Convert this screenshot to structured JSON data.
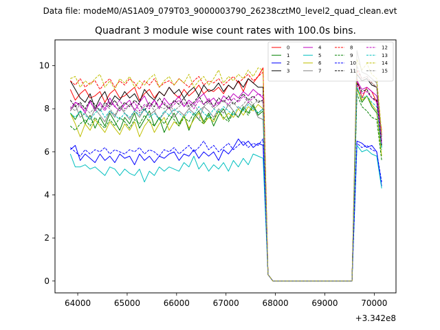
{
  "chart_data": {
    "type": "line",
    "suptitle": "Data file: modeM0/AS1A09_079T03_9000003790_26238cztM0_level2_quad_clean.evt",
    "title": "Quadrant 3 module wise count rates with 100.0s bins.",
    "xlabel": "",
    "ylabel": "",
    "x_offset_label": "+3.342e8",
    "xlim": [
      63540,
      70440
    ],
    "ylim": [
      -0.55,
      11.2
    ],
    "xticks": [
      64000,
      65000,
      66000,
      67000,
      68000,
      69000,
      70000
    ],
    "yticks": [
      0,
      2,
      4,
      6,
      8,
      10
    ],
    "x_start": 63850,
    "bin": 100,
    "legend_position": "top-right",
    "series": [
      {
        "name": "0",
        "color": "#ff0000",
        "dash": "solid",
        "values": [
          8.9,
          8.4,
          8.7,
          8.9,
          8.5,
          8.6,
          8.8,
          8.3,
          8.7,
          8.9,
          8.5,
          8.6,
          8.8,
          9.0,
          8.4,
          8.7,
          8.9,
          8.5,
          8.8,
          8.6,
          9.0,
          8.7,
          8.5,
          8.9,
          8.6,
          8.8,
          9.1,
          8.7,
          8.9,
          8.8,
          9.0,
          8.7,
          9.1,
          8.9,
          9.3,
          8.8,
          9.4,
          9.2,
          9.5,
          9.9,
          0.3,
          0,
          0,
          0,
          0,
          0,
          0,
          0,
          0,
          0,
          0,
          0,
          0,
          0,
          0,
          0,
          0,
          0,
          9.4,
          8.5,
          9.0,
          8.8,
          8.3,
          7.0
        ]
      },
      {
        "name": "1",
        "color": "#008000",
        "dash": "solid",
        "values": [
          7.8,
          7.5,
          7.9,
          7.3,
          7.7,
          7.1,
          7.6,
          7.2,
          7.8,
          7.4,
          7.0,
          7.6,
          7.3,
          7.8,
          7.1,
          7.5,
          7.9,
          7.2,
          7.6,
          6.9,
          7.4,
          7.8,
          7.3,
          7.7,
          7.0,
          7.6,
          7.9,
          7.4,
          7.8,
          7.2,
          7.7,
          8.0,
          7.5,
          7.9,
          7.6,
          8.1,
          7.8,
          8.2,
          7.7,
          7.9,
          0.3,
          0,
          0,
          0,
          0,
          0,
          0,
          0,
          0,
          0,
          0,
          0,
          0,
          0,
          0,
          0,
          0,
          0,
          9.0,
          8.3,
          8.6,
          8.1,
          7.8,
          6.2
        ]
      },
      {
        "name": "2",
        "color": "#0000ff",
        "dash": "solid",
        "values": [
          6.1,
          6.3,
          5.6,
          5.9,
          5.7,
          5.5,
          5.9,
          5.6,
          5.8,
          5.5,
          5.9,
          5.7,
          5.8,
          5.4,
          5.9,
          5.6,
          5.8,
          5.5,
          5.8,
          5.7,
          5.9,
          6.0,
          5.6,
          5.9,
          5.8,
          6.1,
          5.7,
          6.0,
          5.8,
          6.0,
          5.6,
          6.1,
          5.9,
          6.2,
          6.6,
          6.3,
          6.5,
          6.2,
          6.4,
          6.3,
          0.3,
          0,
          0,
          0,
          0,
          0,
          0,
          0,
          0,
          0,
          0,
          0,
          0,
          0,
          0,
          0,
          0,
          0,
          6.5,
          6.4,
          6.2,
          6.3,
          6.0,
          4.4
        ]
      },
      {
        "name": "3",
        "color": "#000000",
        "dash": "solid",
        "values": [
          9.3,
          8.9,
          8.5,
          8.3,
          8.7,
          8.0,
          8.5,
          8.8,
          8.2,
          8.6,
          8.4,
          8.8,
          8.5,
          8.7,
          8.3,
          8.9,
          8.6,
          8.4,
          8.8,
          8.6,
          9.0,
          8.7,
          8.9,
          8.5,
          8.8,
          9.0,
          8.6,
          9.1,
          8.8,
          8.9,
          9.2,
          8.8,
          9.1,
          8.9,
          9.3,
          9.0,
          9.4,
          9.2,
          9.0,
          9.0,
          0.3,
          0,
          0,
          0,
          0,
          0,
          0,
          0,
          0,
          0,
          0,
          0,
          0,
          0,
          0,
          0,
          0,
          0,
          9.6,
          9.3,
          9.4,
          9.1,
          9.0,
          6.7
        ]
      },
      {
        "name": "4",
        "color": "#bf00bf",
        "dash": "solid",
        "values": [
          7.9,
          8.3,
          8.2,
          7.8,
          8.4,
          7.9,
          8.3,
          8.0,
          8.5,
          8.1,
          7.9,
          8.2,
          8.4,
          7.9,
          8.3,
          8.6,
          8.1,
          8.4,
          8.0,
          8.5,
          8.2,
          8.3,
          8.6,
          8.1,
          8.4,
          8.2,
          8.5,
          8.7,
          8.3,
          8.5,
          8.2,
          8.6,
          8.4,
          8.7,
          8.5,
          8.8,
          8.6,
          8.9,
          8.7,
          8.5,
          0.3,
          0,
          0,
          0,
          0,
          0,
          0,
          0,
          0,
          0,
          0,
          0,
          0,
          0,
          0,
          0,
          0,
          0,
          9.3,
          8.9,
          9.0,
          8.8,
          8.6,
          6.5
        ]
      },
      {
        "name": "5",
        "color": "#00bfbf",
        "dash": "solid",
        "values": [
          5.9,
          5.3,
          5.3,
          5.4,
          5.2,
          5.3,
          5.1,
          4.9,
          5.3,
          5.2,
          4.9,
          5.2,
          5.0,
          4.9,
          5.2,
          4.6,
          5.1,
          4.9,
          5.3,
          5.1,
          5.3,
          5.2,
          5.1,
          5.5,
          5.3,
          5.8,
          5.2,
          5.5,
          5.1,
          5.4,
          5.2,
          5.5,
          5.1,
          5.6,
          5.3,
          5.7,
          5.4,
          5.9,
          5.8,
          5.7,
          0.3,
          0,
          0,
          0,
          0,
          0,
          0,
          0,
          0,
          0,
          0,
          0,
          0,
          0,
          0,
          0,
          0,
          0,
          6.3,
          6.0,
          6.1,
          5.9,
          5.8,
          4.3
        ]
      },
      {
        "name": "6",
        "color": "#bfbf00",
        "dash": "solid",
        "values": [
          7.8,
          7.3,
          6.7,
          7.3,
          7.0,
          7.5,
          7.2,
          6.9,
          7.4,
          7.1,
          6.8,
          7.3,
          7.0,
          7.4,
          6.7,
          7.2,
          7.5,
          6.9,
          7.3,
          7.6,
          7.0,
          7.4,
          7.2,
          7.7,
          7.1,
          7.5,
          7.8,
          7.3,
          7.6,
          7.4,
          7.9,
          7.5,
          7.8,
          7.6,
          8.0,
          7.7,
          8.1,
          7.9,
          8.2,
          8.0,
          0.3,
          0,
          0,
          0,
          0,
          0,
          0,
          0,
          0,
          0,
          0,
          0,
          0,
          0,
          0,
          0,
          0,
          0,
          8.9,
          8.4,
          8.6,
          8.2,
          7.9,
          5.8
        ]
      },
      {
        "name": "7",
        "color": "#808080",
        "dash": "solid",
        "values": [
          7.9,
          8.2,
          7.6,
          7.8,
          7.5,
          8.0,
          7.7,
          7.4,
          7.9,
          7.6,
          8.1,
          7.8,
          7.5,
          7.9,
          7.6,
          8.0,
          7.7,
          7.9,
          7.5,
          7.8,
          8.1,
          7.6,
          7.9,
          7.7,
          8.0,
          7.8,
          7.5,
          8.1,
          7.9,
          7.6,
          8.0,
          7.8,
          8.2,
          7.9,
          7.6,
          8.0,
          8.3,
          8.1,
          7.6,
          7.5,
          0.3,
          0,
          0,
          0,
          0,
          0,
          0,
          0,
          0,
          0,
          0,
          0,
          0,
          0,
          0,
          0,
          0,
          0,
          10.7,
          9.7,
          9.6,
          9.4,
          9.2,
          6.7
        ]
      },
      {
        "name": "8",
        "color": "#ff0000",
        "dash": "dashed",
        "values": [
          9.3,
          9.1,
          9.4,
          9.0,
          9.2,
          9.3,
          8.9,
          9.2,
          9.4,
          9.0,
          9.3,
          9.1,
          9.4,
          9.2,
          8.9,
          9.3,
          9.1,
          9.4,
          9.0,
          9.2,
          9.3,
          9.1,
          9.4,
          9.2,
          9.0,
          9.3,
          9.5,
          9.1,
          9.3,
          9.2,
          9.4,
          9.1,
          9.3,
          9.5,
          9.2,
          9.4,
          9.6,
          9.3,
          9.5,
          9.7,
          0.3,
          0,
          0,
          0,
          0,
          0,
          0,
          0,
          0,
          0,
          0,
          0,
          0,
          0,
          0,
          0,
          0,
          0,
          9.8,
          9.4,
          9.5,
          9.2,
          9.0,
          6.8
        ]
      },
      {
        "name": "9",
        "color": "#008000",
        "dash": "dashed",
        "values": [
          7.2,
          7.0,
          7.3,
          7.5,
          7.2,
          7.6,
          7.3,
          7.1,
          7.5,
          7.2,
          7.6,
          7.4,
          7.1,
          7.5,
          7.3,
          7.7,
          7.4,
          7.2,
          7.6,
          7.3,
          7.7,
          7.5,
          7.2,
          7.6,
          7.4,
          7.8,
          7.5,
          7.3,
          7.7,
          7.5,
          7.9,
          7.6,
          7.4,
          7.8,
          7.6,
          8.0,
          7.7,
          8.1,
          7.8,
          8.0,
          0.3,
          0,
          0,
          0,
          0,
          0,
          0,
          0,
          0,
          0,
          0,
          0,
          0,
          0,
          0,
          0,
          0,
          0,
          8.7,
          8.1,
          7.9,
          7.6,
          7.5,
          5.6
        ]
      },
      {
        "name": "10",
        "color": "#0000ff",
        "dash": "dashed",
        "values": [
          6.2,
          6.0,
          5.8,
          6.1,
          5.9,
          6.1,
          6.0,
          6.2,
          5.9,
          6.1,
          6.0,
          5.9,
          6.1,
          6.0,
          6.2,
          5.9,
          6.1,
          6.0,
          5.8,
          6.1,
          6.0,
          6.2,
          5.9,
          6.1,
          6.3,
          6.0,
          6.2,
          6.5,
          6.1,
          6.3,
          6.0,
          6.2,
          6.4,
          6.1,
          6.3,
          6.5,
          6.2,
          6.4,
          6.3,
          6.6,
          0.3,
          0,
          0,
          0,
          0,
          0,
          0,
          0,
          0,
          0,
          0,
          0,
          0,
          0,
          0,
          0,
          0,
          0,
          6.4,
          6.2,
          6.3,
          6.1,
          6.0,
          4.6
        ]
      },
      {
        "name": "11",
        "color": "#000000",
        "dash": "dashed",
        "values": [
          8.4,
          8.1,
          8.3,
          8.0,
          8.4,
          8.2,
          7.9,
          8.3,
          8.1,
          8.4,
          8.0,
          8.3,
          8.1,
          8.4,
          8.2,
          7.9,
          8.3,
          8.1,
          8.5,
          8.2,
          8.0,
          8.4,
          8.2,
          8.5,
          8.1,
          8.3,
          8.6,
          8.2,
          8.4,
          8.1,
          8.5,
          8.3,
          8.6,
          8.2,
          8.4,
          8.7,
          8.4,
          8.6,
          8.3,
          8.4,
          0.3,
          0,
          0,
          0,
          0,
          0,
          0,
          0,
          0,
          0,
          0,
          0,
          0,
          0,
          0,
          0,
          0,
          0,
          9.2,
          8.8,
          8.9,
          8.5,
          8.4,
          6.3
        ]
      },
      {
        "name": "12",
        "color": "#bf00bf",
        "dash": "dashed",
        "values": [
          8.0,
          8.3,
          8.1,
          7.9,
          8.3,
          8.0,
          8.2,
          7.9,
          8.3,
          8.1,
          8.4,
          8.0,
          8.2,
          8.3,
          7.9,
          8.2,
          8.0,
          8.4,
          8.1,
          8.3,
          8.0,
          8.2,
          8.4,
          8.1,
          8.3,
          8.0,
          8.4,
          8.2,
          8.5,
          8.1,
          8.3,
          8.4,
          8.2,
          8.5,
          8.3,
          8.6,
          8.3,
          8.5,
          8.7,
          8.6,
          0.3,
          0,
          0,
          0,
          0,
          0,
          0,
          0,
          0,
          0,
          0,
          0,
          0,
          0,
          0,
          0,
          0,
          0,
          9.1,
          8.7,
          8.8,
          8.5,
          8.3,
          6.4
        ]
      },
      {
        "name": "13",
        "color": "#00bfbf",
        "dash": "dashed",
        "values": [
          7.8,
          7.6,
          7.9,
          7.7,
          7.5,
          7.8,
          8.0,
          7.6,
          7.9,
          7.7,
          7.5,
          7.8,
          7.6,
          7.9,
          7.7,
          8.0,
          7.6,
          7.8,
          7.5,
          7.9,
          7.7,
          8.0,
          7.8,
          7.6,
          7.9,
          7.7,
          8.1,
          7.8,
          7.6,
          8.0,
          7.8,
          8.1,
          7.9,
          7.7,
          8.1,
          7.9,
          8.2,
          8.0,
          7.8,
          8.0,
          0.3,
          0,
          0,
          0,
          0,
          0,
          0,
          0,
          0,
          0,
          0,
          0,
          0,
          0,
          0,
          0,
          0,
          0,
          9.0,
          8.5,
          8.6,
          8.3,
          8.1,
          6.1
        ]
      },
      {
        "name": "14",
        "color": "#bfbf00",
        "dash": "dashed",
        "values": [
          9.4,
          9.5,
          9.0,
          9.3,
          9.1,
          9.4,
          9.6,
          9.0,
          9.3,
          8.9,
          9.4,
          9.2,
          9.5,
          9.0,
          9.3,
          9.1,
          9.4,
          9.6,
          9.0,
          9.3,
          9.5,
          9.1,
          9.4,
          9.2,
          9.6,
          9.0,
          9.3,
          9.5,
          9.1,
          9.4,
          9.8,
          9.2,
          9.5,
          9.3,
          9.6,
          9.4,
          9.8,
          9.5,
          9.9,
          9.8,
          0.3,
          0,
          0,
          0,
          0,
          0,
          0,
          0,
          0,
          0,
          0,
          0,
          0,
          0,
          0,
          0,
          0,
          0,
          10.3,
          9.8,
          10.1,
          9.6,
          9.4,
          6.9
        ]
      },
      {
        "name": "15",
        "color": "#808080",
        "dash": "dashed",
        "values": [
          8.1,
          7.9,
          8.2,
          8.0,
          7.8,
          8.1,
          7.9,
          8.2,
          8.0,
          7.7,
          8.1,
          7.9,
          8.2,
          8.0,
          7.8,
          8.1,
          8.3,
          7.9,
          8.1,
          8.0,
          8.2,
          7.9,
          8.1,
          8.3,
          8.0,
          8.2,
          7.9,
          8.1,
          8.3,
          8.0,
          8.2,
          8.4,
          8.1,
          8.3,
          8.0,
          8.2,
          8.5,
          8.2,
          8.4,
          8.3,
          0.3,
          0,
          0,
          0,
          0,
          0,
          0,
          0,
          0,
          0,
          0,
          0,
          0,
          0,
          0,
          0,
          0,
          0,
          10.0,
          9.4,
          9.5,
          9.2,
          9.0,
          6.6
        ]
      }
    ]
  }
}
